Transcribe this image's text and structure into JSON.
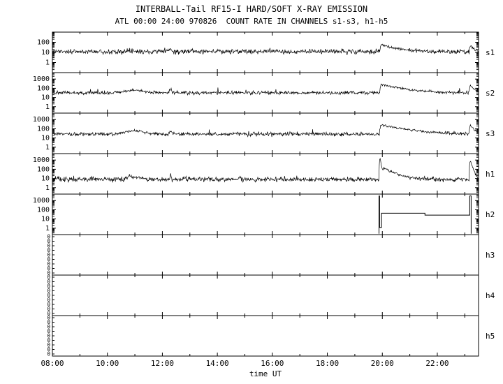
{
  "chart_data": {
    "type": "line",
    "title": "INTERBALL-Tail RF15-I HARD/SOFT X-RAY EMISSION",
    "subtitle": "ATL 00:00 24:00 970826  COUNT RATE IN CHANNELS s1-s3, h1-h5",
    "xlabel": "time UT",
    "x_range": [
      8,
      23.5
    ],
    "x_ticks": [
      {
        "t": 8,
        "label": "08:00"
      },
      {
        "t": 10,
        "label": "10:00"
      },
      {
        "t": 12,
        "label": "12:00"
      },
      {
        "t": 14,
        "label": "14:00"
      },
      {
        "t": 16,
        "label": "16:00"
      },
      {
        "t": 18,
        "label": "18:00"
      },
      {
        "t": 20,
        "label": "20:00"
      },
      {
        "t": 22,
        "label": "22:00"
      }
    ],
    "grid": false,
    "legend": "panel labels on right side",
    "panels": [
      {
        "label": "s1",
        "scale": "log",
        "ylim": [
          0.1,
          1000
        ],
        "yticks": [
          1,
          10,
          100
        ],
        "series": {
          "kind": "noisy",
          "baseline": 12,
          "sigma": 0.12,
          "bumps": [
            {
              "t": 12.3,
              "peak": 10,
              "width": 0.03
            },
            {
              "t": 19.95,
              "peak": 45,
              "decay": 0.45
            },
            {
              "t": 23.2,
              "peak": 30,
              "decay": 0.1
            }
          ]
        }
      },
      {
        "label": "s2",
        "scale": "log",
        "ylim": [
          0.2,
          5000
        ],
        "yticks": [
          1,
          10,
          100,
          1000
        ],
        "series": {
          "kind": "noisy",
          "baseline": 32,
          "sigma": 0.09,
          "bumps": [
            {
              "t": 11.0,
              "peak": 25,
              "width": 0.35
            },
            {
              "t": 12.3,
              "peak": 28,
              "width": 0.04
            },
            {
              "t": 19.95,
              "peak": 220,
              "decay": 0.6
            },
            {
              "t": 23.2,
              "peak": 150,
              "decay": 0.12
            }
          ]
        }
      },
      {
        "label": "s3",
        "scale": "log",
        "ylim": [
          0.2,
          5000
        ],
        "yticks": [
          1,
          10,
          100,
          1000
        ],
        "series": {
          "kind": "noisy",
          "baseline": 26,
          "sigma": 0.1,
          "bumps": [
            {
              "t": 11.0,
              "peak": 30,
              "width": 0.3
            },
            {
              "t": 12.3,
              "peak": 26,
              "width": 0.04
            },
            {
              "t": 19.95,
              "peak": 230,
              "decay": 0.7
            },
            {
              "t": 23.2,
              "peak": 210,
              "decay": 0.1
            }
          ]
        }
      },
      {
        "label": "h1",
        "scale": "log",
        "ylim": [
          0.2,
          5000
        ],
        "yticks": [
          1,
          10,
          100,
          1000
        ],
        "series": {
          "kind": "noisy",
          "baseline": 8,
          "sigma": 0.13,
          "bumps": [
            {
              "t": 10.8,
              "peak": 15,
              "width": 0.02
            },
            {
              "t": 11.0,
              "peak": 6,
              "width": 0.2
            },
            {
              "t": 12.3,
              "peak": 25,
              "width": 0.015
            },
            {
              "t": 19.92,
              "peak": 1400,
              "decay": 0.03
            },
            {
              "t": 20.05,
              "peak": 120,
              "decay": 0.3
            },
            {
              "t": 23.2,
              "peak": 900,
              "decay": 0.05
            }
          ]
        }
      },
      {
        "label": "h2",
        "scale": "log",
        "ylim": [
          0.2,
          5000
        ],
        "yticks": [
          1,
          10,
          100,
          1000
        ],
        "series": {
          "kind": "steps",
          "points": [
            [
              19.88,
              0.25
            ],
            [
              19.88,
              3200
            ],
            [
              19.9,
              3200
            ],
            [
              19.9,
              1.2
            ],
            [
              19.97,
              1.2
            ],
            [
              19.97,
              42
            ],
            [
              21.55,
              42
            ],
            [
              21.55,
              26
            ],
            [
              23.18,
              26
            ],
            [
              23.18,
              3200
            ],
            [
              23.23,
              3200
            ],
            [
              23.23,
              0.25
            ]
          ]
        }
      },
      {
        "label": "h3",
        "scale": "zero",
        "zero_ticks": 9,
        "series": {
          "kind": "none"
        }
      },
      {
        "label": "h4",
        "scale": "zero",
        "zero_ticks": 9,
        "series": {
          "kind": "none"
        }
      },
      {
        "label": "h5",
        "scale": "zero",
        "zero_ticks": 9,
        "series": {
          "kind": "none"
        }
      }
    ]
  }
}
